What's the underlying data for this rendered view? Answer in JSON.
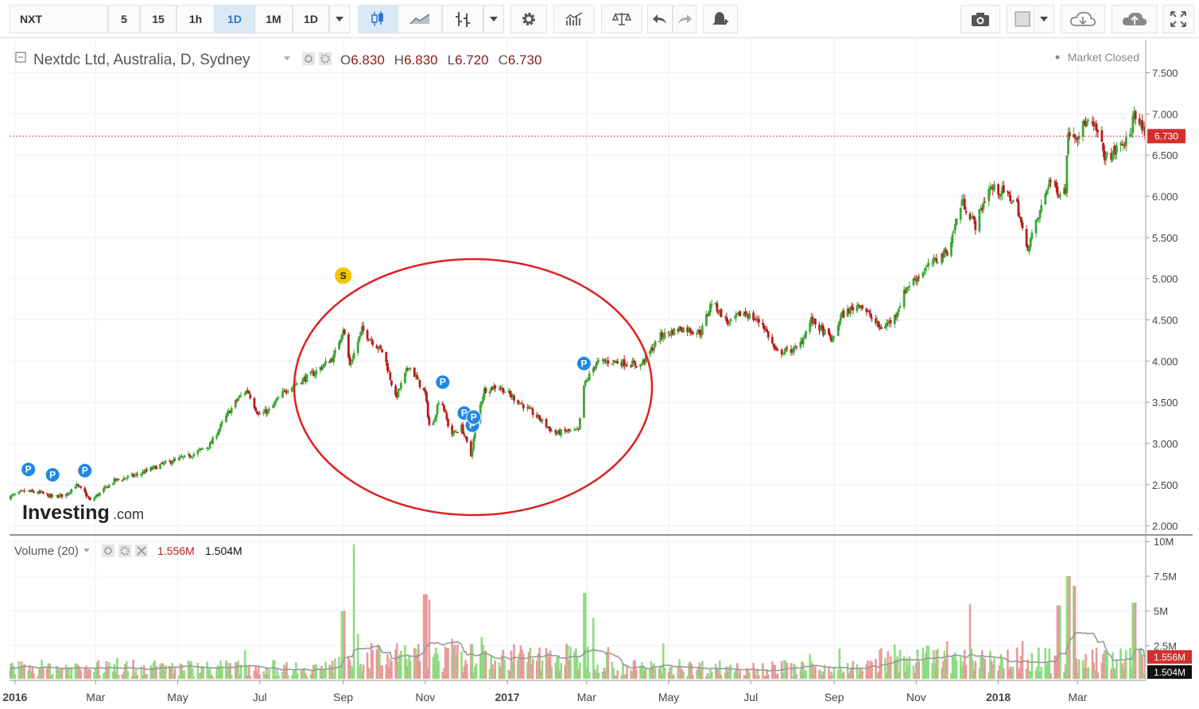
{
  "toolbar": {
    "symbol": "NXT",
    "intervals": [
      "5",
      "15",
      "1h",
      "1D",
      "1M",
      "1D"
    ],
    "active_interval": "1D",
    "icons": [
      "chevron-down-icon",
      "candlestick-icon",
      "line-chart-icon",
      "bar-type-icon",
      "chevron-down-icon",
      "gear-icon",
      "indicators-icon",
      "compare-scale-icon",
      "undo-icon",
      "redo-icon",
      "alert-bell-icon",
      "camera-icon",
      "square-style-icon",
      "chevron-down-icon",
      "cloud-download-icon",
      "cloud-upload-icon",
      "fullscreen-icon"
    ]
  },
  "header": {
    "title": "Nextdc Ltd, Australia, D, Sydney",
    "o_label": "O",
    "o_value": "6.830",
    "h_label": "H",
    "h_value": "6.830",
    "l_label": "L",
    "l_value": "6.720",
    "c_label": "C",
    "c_value": "6.730",
    "market_status": "Market Closed"
  },
  "watermark": {
    "brand": "Investing",
    "suffix": ".com"
  },
  "volume_legend": {
    "label": "Volume (20)",
    "value_red": "1.556M",
    "value_dark": "1.504M"
  },
  "colors": {
    "up": "#3aa835",
    "down": "#b71c1c",
    "vol_up": "#8fdc80",
    "vol_down": "#e89a9a",
    "ma": "#999999",
    "annotation": "#e02020",
    "marker_p": "#1e88e5",
    "marker_s": "#f5c400"
  },
  "markers": [
    {
      "label": "P",
      "date": "2016-01-11"
    },
    {
      "label": "P",
      "date": "2016-01-29"
    },
    {
      "label": "P",
      "date": "2016-02-22"
    },
    {
      "label": "S",
      "date": "2016-09-01"
    },
    {
      "label": "P",
      "date": "2016-11-14"
    },
    {
      "label": "P",
      "date": "2016-11-30"
    },
    {
      "label": "P",
      "date": "2016-12-06"
    },
    {
      "label": "P",
      "date": "2016-12-07"
    },
    {
      "label": "P",
      "date": "2017-02-27"
    }
  ],
  "chart_data": {
    "type": "candlestick",
    "x_axis": {
      "tick_labels": [
        "2016",
        "Mar",
        "May",
        "Jul",
        "Sep",
        "Nov",
        "2017",
        "Mar",
        "May",
        "Jul",
        "Sep",
        "Nov",
        "2018",
        "Mar"
      ],
      "tick_dates": [
        "2016-01-01",
        "2016-03-01",
        "2016-05-01",
        "2016-07-01",
        "2016-09-01",
        "2016-11-01",
        "2017-01-01",
        "2017-03-01",
        "2017-05-01",
        "2017-07-01",
        "2017-09-01",
        "2017-11-01",
        "2018-01-01",
        "2018-03-01"
      ],
      "range": [
        "2015-12-28",
        "2018-04-20"
      ]
    },
    "price_axis": {
      "range": [
        1.9,
        7.9
      ],
      "tick_labels": [
        "2.000",
        "2.500",
        "3.000",
        "3.500",
        "4.000",
        "4.500",
        "5.000",
        "5.500",
        "6.000",
        "6.500",
        "7.000",
        "7.500"
      ]
    },
    "volume_axis": {
      "range": [
        0,
        10.3
      ],
      "unit": "M",
      "tick_labels": [
        "10M",
        "7.5M",
        "5M",
        "2.5M"
      ],
      "tick_values": [
        10,
        7.5,
        5,
        2.5
      ]
    },
    "last_price": {
      "value": 6.73,
      "label": "6.730"
    },
    "volume_last": {
      "value": 1.556,
      "label": "1.556M"
    },
    "volume_ma_last": {
      "value": 1.504,
      "label": "1.504M"
    },
    "volume_ma_period": 20,
    "close_path": [
      [
        "2015-12-28",
        2.35
      ],
      [
        "2016-01-08",
        2.42
      ],
      [
        "2016-01-20",
        2.4
      ],
      [
        "2016-01-29",
        2.35
      ],
      [
        "2016-02-08",
        2.38
      ],
      [
        "2016-02-15",
        2.5
      ],
      [
        "2016-02-22",
        2.4
      ],
      [
        "2016-02-26",
        2.3
      ],
      [
        "2016-03-15",
        2.55
      ],
      [
        "2016-04-01",
        2.62
      ],
      [
        "2016-04-20",
        2.75
      ],
      [
        "2016-05-10",
        2.85
      ],
      [
        "2016-05-25",
        2.98
      ],
      [
        "2016-06-05",
        3.3
      ],
      [
        "2016-06-15",
        3.55
      ],
      [
        "2016-06-22",
        3.65
      ],
      [
        "2016-06-30",
        3.35
      ],
      [
        "2016-07-08",
        3.4
      ],
      [
        "2016-07-20",
        3.65
      ],
      [
        "2016-08-10",
        3.85
      ],
      [
        "2016-08-25",
        4.05
      ],
      [
        "2016-09-01",
        4.4
      ],
      [
        "2016-09-06",
        3.95
      ],
      [
        "2016-09-15",
        4.38
      ],
      [
        "2016-10-01",
        4.1
      ],
      [
        "2016-10-10",
        3.55
      ],
      [
        "2016-10-20",
        3.95
      ],
      [
        "2016-11-01",
        3.6
      ],
      [
        "2016-11-05",
        3.1
      ],
      [
        "2016-11-12",
        3.6
      ],
      [
        "2016-11-20",
        3.1
      ],
      [
        "2016-11-28",
        3.2
      ],
      [
        "2016-12-05",
        2.85
      ],
      [
        "2016-12-10",
        3.35
      ],
      [
        "2016-12-15",
        3.65
      ],
      [
        "2016-12-25",
        3.7
      ],
      [
        "2017-01-10",
        3.5
      ],
      [
        "2017-01-25",
        3.3
      ],
      [
        "2017-02-05",
        3.12
      ],
      [
        "2017-02-15",
        3.15
      ],
      [
        "2017-02-23",
        3.15
      ],
      [
        "2017-02-27",
        3.7
      ],
      [
        "2017-03-08",
        3.98
      ],
      [
        "2017-03-20",
        4.0
      ],
      [
        "2017-04-10",
        3.95
      ],
      [
        "2017-04-25",
        4.3
      ],
      [
        "2017-05-10",
        4.4
      ],
      [
        "2017-05-25",
        4.35
      ],
      [
        "2017-06-02",
        4.72
      ],
      [
        "2017-06-15",
        4.45
      ],
      [
        "2017-06-25",
        4.6
      ],
      [
        "2017-07-10",
        4.45
      ],
      [
        "2017-07-20",
        4.1
      ],
      [
        "2017-08-05",
        4.15
      ],
      [
        "2017-08-15",
        4.5
      ],
      [
        "2017-08-31",
        4.25
      ],
      [
        "2017-09-06",
        4.55
      ],
      [
        "2017-09-20",
        4.7
      ],
      [
        "2017-10-05",
        4.4
      ],
      [
        "2017-10-15",
        4.5
      ],
      [
        "2017-10-25",
        4.9
      ],
      [
        "2017-11-10",
        5.15
      ],
      [
        "2017-11-25",
        5.35
      ],
      [
        "2017-12-05",
        5.95
      ],
      [
        "2017-12-15",
        5.65
      ],
      [
        "2017-12-25",
        6.1
      ],
      [
        "2018-01-05",
        6.05
      ],
      [
        "2018-01-15",
        5.9
      ],
      [
        "2018-01-22",
        5.35
      ],
      [
        "2018-01-31",
        5.75
      ],
      [
        "2018-02-08",
        6.2
      ],
      [
        "2018-02-15",
        6.05
      ],
      [
        "2018-02-20",
        6.1
      ],
      [
        "2018-02-22",
        6.8
      ],
      [
        "2018-03-01",
        6.75
      ],
      [
        "2018-03-07",
        6.9
      ],
      [
        "2018-03-15",
        6.8
      ],
      [
        "2018-03-22",
        6.45
      ],
      [
        "2018-04-01",
        6.6
      ],
      [
        "2018-04-09",
        6.7
      ],
      [
        "2018-04-12",
        7.05
      ],
      [
        "2018-04-20",
        6.73
      ]
    ],
    "volume_spikes": [
      [
        "2016-09-01",
        5.0
      ],
      [
        "2016-09-10",
        9.8
      ],
      [
        "2016-11-01",
        6.2
      ],
      [
        "2016-11-05",
        5.8
      ],
      [
        "2016-11-20",
        3.0
      ],
      [
        "2017-02-27",
        6.3
      ],
      [
        "2017-03-05",
        4.5
      ],
      [
        "2017-10-15",
        2.6
      ],
      [
        "2017-11-10",
        2.5
      ],
      [
        "2017-11-25",
        2.8
      ],
      [
        "2017-12-10",
        5.5
      ],
      [
        "2018-02-15",
        5.4
      ],
      [
        "2018-02-22",
        7.5
      ],
      [
        "2018-02-26",
        6.8
      ],
      [
        "2018-04-12",
        5.6
      ]
    ]
  }
}
